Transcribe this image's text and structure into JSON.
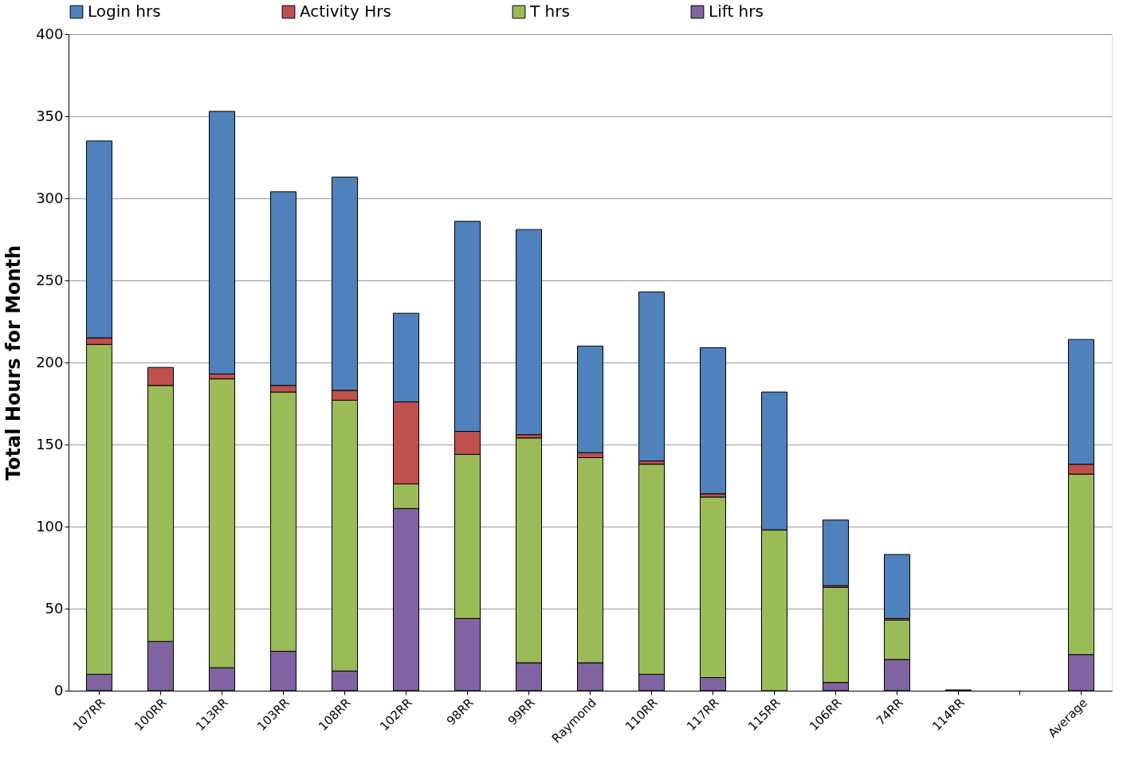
{
  "chart_data": {
    "type": "bar",
    "stacked": true,
    "ylabel": "Total Hours for Month",
    "categories": [
      "107RR",
      "100RR",
      "113RR",
      "103RR",
      "108RR",
      "102RR",
      "98RR",
      "99RR",
      "Raymond",
      "110RR",
      "117RR",
      "115RR",
      "106RR",
      "74RR",
      "114RR",
      null,
      "Average"
    ],
    "series": [
      {
        "name": "Lift hrs",
        "color": "#8064a2",
        "values": [
          10,
          30,
          14,
          24,
          12,
          111,
          44,
          17,
          17,
          10,
          8,
          0,
          5,
          19,
          0.5,
          0,
          22
        ]
      },
      {
        "name": "T hrs",
        "color": "#9bbb59",
        "values": [
          201,
          156,
          176,
          158,
          165,
          15,
          100,
          137,
          125,
          128,
          110,
          98,
          58,
          24,
          0,
          0,
          110
        ]
      },
      {
        "name": "Activity Hrs",
        "color": "#c0504d",
        "values": [
          4,
          11,
          3,
          4,
          6,
          50,
          14,
          2,
          3,
          2,
          2,
          0,
          1,
          1,
          0,
          0,
          6
        ]
      },
      {
        "name": "Login hrs",
        "color": "#4f81bd",
        "values": [
          120,
          0,
          160,
          118,
          130,
          54,
          128,
          125,
          65,
          103,
          89,
          84,
          40,
          39,
          0,
          0,
          76
        ]
      }
    ],
    "ylim": [
      0,
      400
    ],
    "yticks": [
      0,
      50,
      100,
      150,
      200,
      250,
      300,
      350,
      400
    ],
    "grid": "y",
    "legend": "top"
  }
}
